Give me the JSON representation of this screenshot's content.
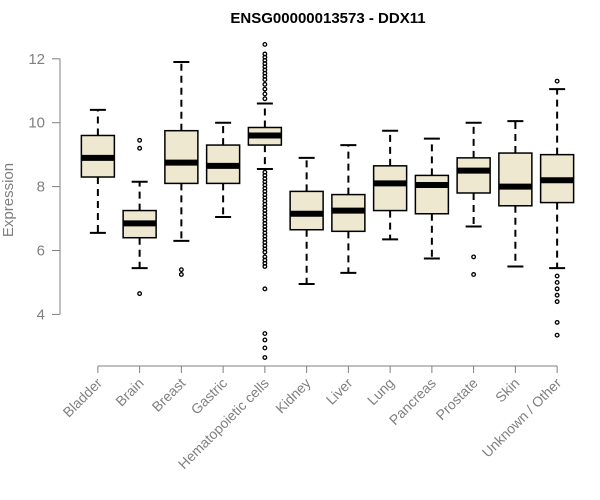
{
  "chart_data": {
    "type": "boxplot",
    "title": "ENSG00000013573 - DDX11",
    "ylabel": "Expression",
    "xlabel": "",
    "ylim": [
      2.4,
      12.8
    ],
    "yticks": [
      4,
      6,
      8,
      10,
      12
    ],
    "box_fill": "#EEE8D0",
    "categories": [
      "Bladder",
      "Brain",
      "Breast",
      "Gastric",
      "Hematopoietic cells",
      "Kidney",
      "Liver",
      "Lung",
      "Pancreas",
      "Prostate",
      "Skin",
      "Unknown / Other"
    ],
    "boxes": [
      {
        "min": 6.55,
        "q1": 8.3,
        "median": 8.9,
        "q3": 9.6,
        "max": 10.4,
        "outliers": []
      },
      {
        "min": 5.45,
        "q1": 6.4,
        "median": 6.85,
        "q3": 7.25,
        "max": 8.15,
        "outliers": [
          4.65,
          9.2,
          9.45
        ]
      },
      {
        "min": 6.3,
        "q1": 8.1,
        "median": 8.75,
        "q3": 9.75,
        "max": 11.9,
        "outliers": [
          5.25,
          5.4
        ]
      },
      {
        "min": 7.05,
        "q1": 8.1,
        "median": 8.65,
        "q3": 9.3,
        "max": 10.0,
        "outliers": []
      },
      {
        "min": 8.55,
        "q1": 9.3,
        "median": 9.6,
        "q3": 9.85,
        "max": 10.6,
        "outliers": [
          2.65,
          2.95,
          3.2,
          3.4,
          4.8,
          5.5,
          5.6,
          5.7,
          5.8,
          5.95,
          6.05,
          6.15,
          6.25,
          6.35,
          6.45,
          6.55,
          6.65,
          6.75,
          6.85,
          6.95,
          7.05,
          7.15,
          7.25,
          7.35,
          7.45,
          7.55,
          7.65,
          7.75,
          7.85,
          7.95,
          8.05,
          8.15,
          8.25,
          8.35,
          8.45,
          10.75,
          10.9,
          11.05,
          11.2,
          11.35,
          11.45,
          11.55,
          11.65,
          11.75,
          11.85,
          11.95,
          12.05,
          12.15,
          12.45
        ]
      },
      {
        "min": 4.95,
        "q1": 6.65,
        "median": 7.15,
        "q3": 7.85,
        "max": 8.9,
        "outliers": []
      },
      {
        "min": 5.3,
        "q1": 6.6,
        "median": 7.25,
        "q3": 7.75,
        "max": 9.3,
        "outliers": []
      },
      {
        "min": 6.35,
        "q1": 7.25,
        "median": 8.1,
        "q3": 8.65,
        "max": 9.75,
        "outliers": []
      },
      {
        "min": 5.75,
        "q1": 7.15,
        "median": 8.05,
        "q3": 8.35,
        "max": 9.5,
        "outliers": []
      },
      {
        "min": 6.75,
        "q1": 7.8,
        "median": 8.5,
        "q3": 8.9,
        "max": 10.0,
        "outliers": [
          5.25,
          5.8
        ]
      },
      {
        "min": 5.5,
        "q1": 7.4,
        "median": 8.0,
        "q3": 9.05,
        "max": 10.05,
        "outliers": []
      },
      {
        "min": 5.45,
        "q1": 7.5,
        "median": 8.2,
        "q3": 9.0,
        "max": 11.05,
        "outliers": [
          3.35,
          3.75,
          4.4,
          4.6,
          4.8,
          5.0,
          5.2,
          11.3
        ]
      }
    ]
  }
}
